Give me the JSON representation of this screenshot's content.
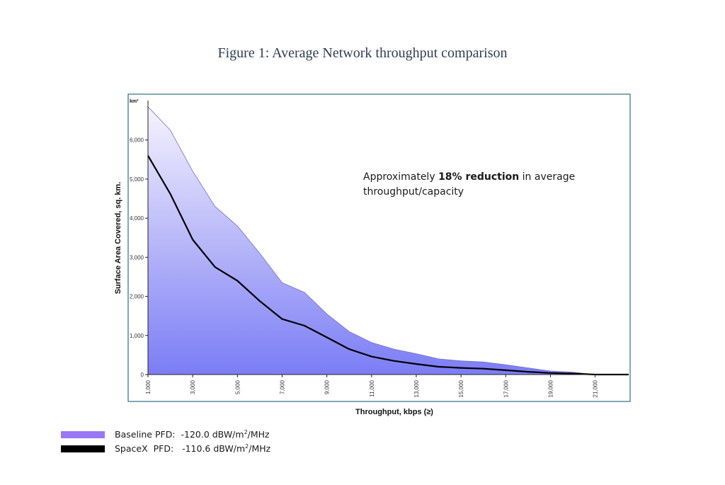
{
  "figure_title": "Figure 1: Average Network throughput comparison",
  "annotation": {
    "prefix": "Approximately ",
    "bold": "18% reduction",
    "suffix": " in average throughput/capacity"
  },
  "legend": [
    {
      "label_prefix": "Baseline PFD:  -120.0 dBW/m",
      "sup": "2",
      "label_suffix": "/MHz",
      "color": "#9a77f5"
    },
    {
      "label_prefix": "SpaceX  PFD:   -110.6 dBW/m",
      "sup": "2",
      "label_suffix": "/MHz",
      "color": "#000000"
    }
  ],
  "chart_data": {
    "type": "area",
    "xlabel": "Throughput, kbps (≥)",
    "ylabel": "Surface Area Covered, sq. km.",
    "y_unit": "km²",
    "xlim": [
      1000,
      22500
    ],
    "ylim": [
      0,
      6900
    ],
    "x_ticks": [
      "1,000",
      "3,000",
      "5,000",
      "7,000",
      "9,000",
      "11,000",
      "13,000",
      "15,000",
      "17,000",
      "19,000",
      "21,000"
    ],
    "y_ticks": [
      "0",
      "1,000",
      "2,000",
      "3,000",
      "4,000",
      "5,000",
      "6,000"
    ],
    "grid": false,
    "colors": {
      "area_top": "#f6f3fd",
      "area_bottom": "#7b7df5",
      "baseline_edge": "#6f6fd6",
      "spacex_line": "#000000",
      "frame": "#2f6f86"
    },
    "x": [
      1000,
      2000,
      3000,
      4000,
      5000,
      6000,
      7000,
      8000,
      9000,
      10000,
      11000,
      12000,
      13000,
      14000,
      15000,
      16000,
      17000,
      18000,
      19000,
      20000,
      21000,
      22000,
      22500
    ],
    "series": [
      {
        "name": "Baseline PFD",
        "values": [
          6850,
          6250,
          5200,
          4300,
          3800,
          3100,
          2350,
          2100,
          1550,
          1100,
          820,
          650,
          530,
          400,
          350,
          320,
          250,
          170,
          90,
          60,
          0,
          0,
          0
        ]
      },
      {
        "name": "SpaceX PFD",
        "values": [
          5600,
          4620,
          3450,
          2750,
          2400,
          1880,
          1420,
          1250,
          950,
          650,
          460,
          350,
          270,
          200,
          170,
          150,
          110,
          70,
          40,
          25,
          0,
          0,
          0
        ]
      }
    ]
  }
}
